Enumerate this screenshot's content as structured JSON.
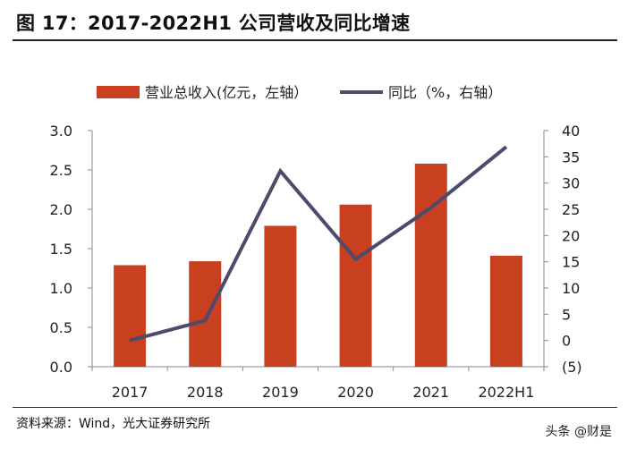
{
  "header": {
    "title": "图 17：2017-2022H1 公司营收及同比增速"
  },
  "footer": {
    "source": "资料来源：Wind，光大证券研究所",
    "watermark": "头条 @财是"
  },
  "colors": {
    "bar": "#c8401f",
    "line": "#4e4a6b",
    "axis": "#8a8a8a",
    "text": "#222222"
  },
  "chart_data": {
    "type": "bar",
    "categories": [
      "2017",
      "2018",
      "2019",
      "2020",
      "2021",
      "2022H1"
    ],
    "series": [
      {
        "name": "营业总收入(亿元，左轴）",
        "type": "bar",
        "axis": "left",
        "values": [
          1.29,
          1.34,
          1.79,
          2.06,
          2.58,
          1.41
        ]
      },
      {
        "name": "同比（%，右轴）",
        "type": "line",
        "axis": "right",
        "values": [
          0,
          3.8,
          32.3,
          15.5,
          25.3,
          36.9
        ]
      }
    ],
    "left_axis": {
      "min": 0,
      "max": 3.0,
      "ticks": [
        "0.0",
        "0.5",
        "1.0",
        "1.5",
        "2.0",
        "2.5",
        "3.0"
      ]
    },
    "right_axis": {
      "min": -5,
      "max": 40,
      "ticks": [
        "(5)",
        "0",
        "5",
        "10",
        "15",
        "20",
        "25",
        "30",
        "35",
        "40"
      ]
    },
    "legend": "top",
    "grid": false
  }
}
